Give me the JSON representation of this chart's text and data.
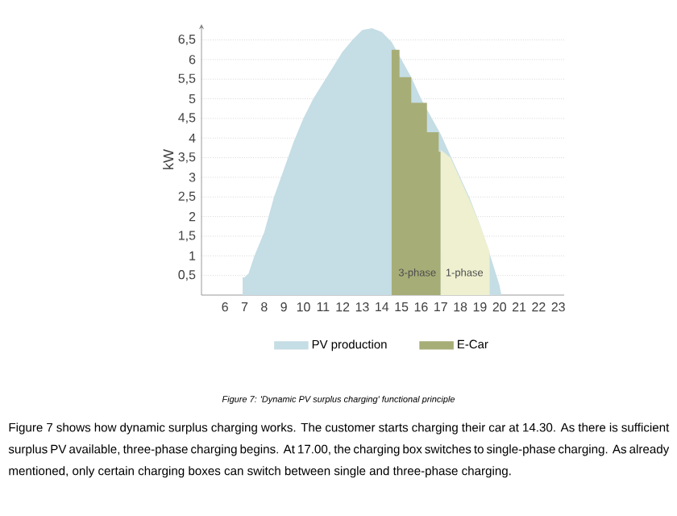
{
  "chart_data": {
    "type": "area",
    "ylabel": "kW",
    "xlim": [
      4.8,
      23.3
    ],
    "ylim": [
      0,
      6.9
    ],
    "xticks": [
      6,
      7,
      8,
      9,
      10,
      11,
      12,
      13,
      14,
      15,
      16,
      17,
      18,
      19,
      20,
      21,
      22,
      23
    ],
    "yticks": [
      {
        "value": 0.5,
        "label": "0,5"
      },
      1,
      {
        "value": 1.5,
        "label": "1,5"
      },
      2,
      {
        "value": 2.5,
        "label": "2,5"
      },
      3,
      {
        "value": 3.5,
        "label": "3,5"
      },
      4,
      {
        "value": 4.5,
        "label": "4,5"
      },
      5,
      {
        "value": 5.5,
        "label": "5,5"
      },
      6,
      {
        "value": 6.5,
        "label": "6,5"
      }
    ],
    "grid": "y",
    "legend": "bottom",
    "series": [
      {
        "name": "PV production",
        "color": "#c5dde5",
        "x": [
          6.9,
          7.0,
          7.2,
          7.5,
          8,
          8.5,
          9,
          9.5,
          10,
          10.5,
          11,
          11.5,
          12,
          12.5,
          13,
          13.5,
          14,
          14.5,
          15,
          15.5,
          16,
          16.5,
          17,
          17.5,
          18,
          18.5,
          19,
          19.5,
          20,
          20.1
        ],
        "values": [
          0.45,
          0.45,
          0.55,
          1.0,
          1.6,
          2.5,
          3.2,
          3.9,
          4.5,
          5.0,
          5.4,
          5.8,
          6.2,
          6.5,
          6.75,
          6.8,
          6.7,
          6.45,
          6.0,
          5.55,
          5.0,
          4.55,
          4.1,
          3.55,
          3.0,
          2.45,
          1.8,
          1.05,
          0.25,
          0
        ]
      },
      {
        "name": "E-Car",
        "color": "#a7ad77",
        "x": [
          14.5,
          14.9,
          14.9,
          15.5,
          15.5,
          16.3,
          16.3,
          16.9,
          16.9,
          17.0
        ],
        "values": [
          6.25,
          6.25,
          5.55,
          5.55,
          4.9,
          4.9,
          4.15,
          4.15,
          3.65,
          3.65
        ]
      },
      {
        "color": "#eef0d0",
        "x": [
          17,
          17.5,
          18,
          18.5,
          19,
          19.5,
          19.5
        ],
        "values": [
          3.7,
          3.5,
          2.95,
          2.4,
          1.8,
          1.1,
          0
        ]
      }
    ],
    "annotations": [
      "3-phase",
      "1-phase",
      "Figure 7: 'Dynamic PV surplus charging' functional principle",
      "Figure 7 shows how dynamic surplus charging works. The customer starts charging their car at 14.30. As there is sufficient surplus PV available, three-phase charging begins. At 17.00, the charging box switches to single-phase charging. As already mentioned, only certain charging boxes can switch between single and three-phase charging."
    ]
  }
}
